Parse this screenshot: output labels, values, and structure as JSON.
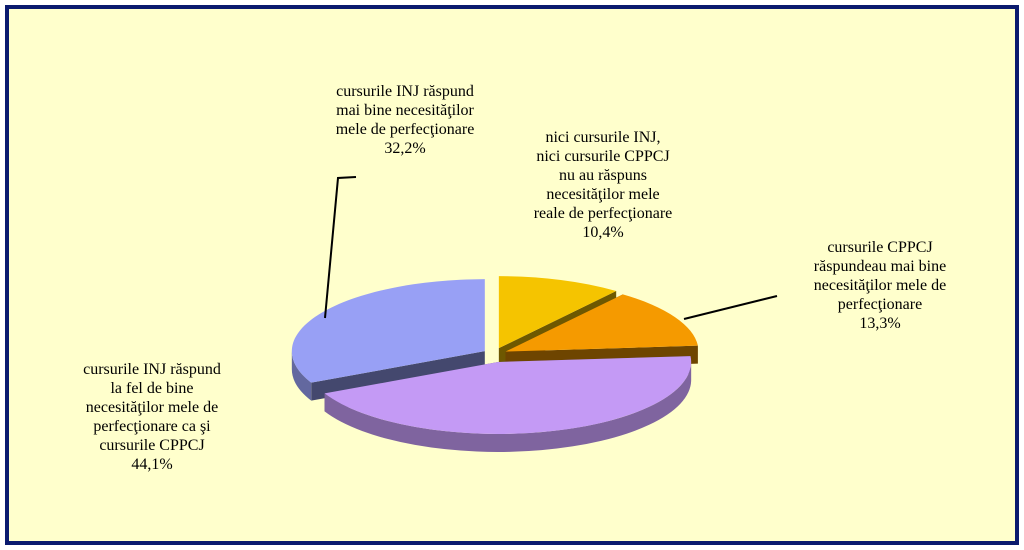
{
  "chart_data": {
    "type": "pie",
    "categories": [
      "nici cursurile INJ,\nnici cursurile CPPCJ\nnu au răspuns\nnecesităţilor mele\nreale de perfecţionare",
      "cursurile CPPCJ\nrăspundeau mai bine\nnecesităţilor mele de\nperfecţionare",
      "cursurile INJ răspund\nla fel de bine\nnecesităţilor mele de\nperfecţionare ca şi\ncursurile CPPCJ",
      "cursurile INJ răspund\nmai bine necesităţilor\nmele de perfecţionare"
    ],
    "values": [
      10.4,
      13.3,
      44.1,
      32.2
    ],
    "value_labels": [
      "10,4%",
      "13,3%",
      "44,1%",
      "32,2%"
    ],
    "colors": [
      "#f5c400",
      "#f59a00",
      "#c49af5",
      "#98a0f5"
    ]
  }
}
